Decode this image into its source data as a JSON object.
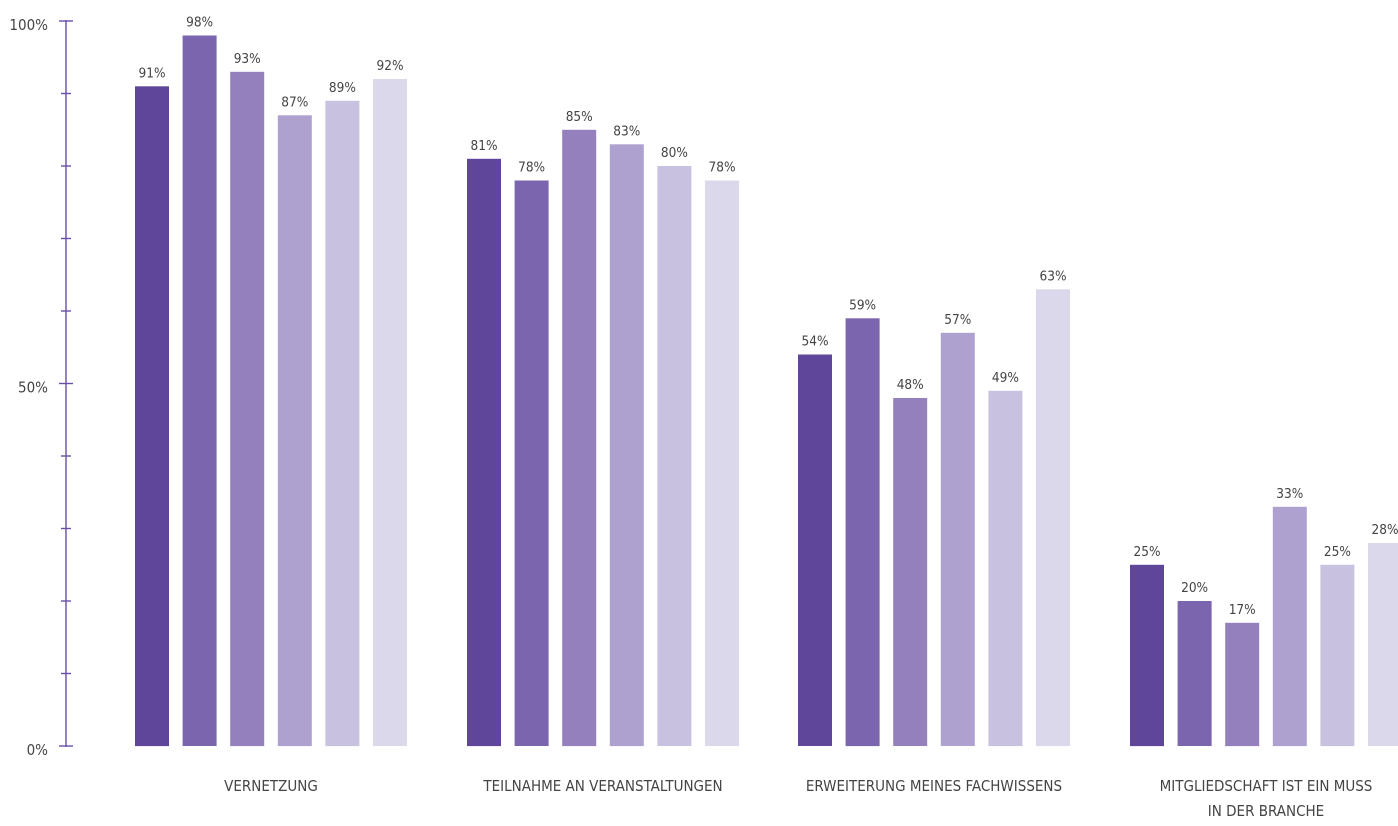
{
  "chart_data": {
    "type": "bar",
    "title": "",
    "xlabel": "",
    "ylabel": "",
    "ylim": [
      0,
      100
    ],
    "y_ticks": [
      "100%",
      "50%",
      "0%"
    ],
    "categories": [
      [
        "VERNETZUNG"
      ],
      [
        "TEILNAHME AN VERANSTALTUNGEN"
      ],
      [
        "ERWEITERUNG MEINES FACHWISSENS"
      ],
      [
        "MITGLIEDSCHAFT IST EIN MUSS",
        "IN DER BRANCHE"
      ]
    ],
    "series": [
      {
        "color": "#5f469b",
        "values": [
          91,
          81,
          54,
          25
        ]
      },
      {
        "color": "#7a65ae",
        "values": [
          98,
          78,
          59,
          20
        ]
      },
      {
        "color": "#9380bd",
        "values": [
          93,
          85,
          48,
          17
        ]
      },
      {
        "color": "#afa1cf",
        "values": [
          87,
          83,
          57,
          33
        ]
      },
      {
        "color": "#c9c1e0",
        "values": [
          89,
          80,
          49,
          25
        ]
      },
      {
        "color": "#dcd8ec",
        "values": [
          92,
          78,
          63,
          28
        ]
      }
    ],
    "value_labels": [
      [
        "91%",
        "81%",
        "54%",
        "25%"
      ],
      [
        "98%",
        "78%",
        "59%",
        "20%"
      ],
      [
        "93%",
        "85%",
        "48%",
        "17%"
      ],
      [
        "87%",
        "83%",
        "57%",
        "33%"
      ],
      [
        "89%",
        "80%",
        "49%",
        "25%"
      ],
      [
        "92%",
        "78%",
        "63%",
        "28%"
      ]
    ],
    "grid": false,
    "legend": "none"
  }
}
